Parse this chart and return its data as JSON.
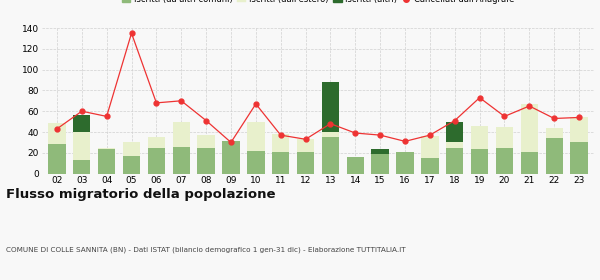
{
  "years": [
    "02",
    "03",
    "04",
    "05",
    "06",
    "07",
    "08",
    "09",
    "10",
    "11",
    "12",
    "13",
    "14",
    "15",
    "16",
    "17",
    "18",
    "19",
    "20",
    "21",
    "22",
    "23"
  ],
  "iscritti_comuni": [
    28,
    13,
    24,
    17,
    25,
    26,
    25,
    31,
    22,
    21,
    21,
    35,
    16,
    19,
    21,
    15,
    25,
    24,
    25,
    21,
    34,
    30
  ],
  "iscritti_estero": [
    21,
    27,
    1,
    13,
    10,
    24,
    12,
    0,
    28,
    17,
    12,
    5,
    0,
    0,
    0,
    21,
    5,
    22,
    20,
    46,
    10,
    24
  ],
  "iscritti_altri": [
    0,
    16,
    0,
    0,
    0,
    0,
    0,
    0,
    0,
    0,
    0,
    48,
    0,
    5,
    0,
    0,
    20,
    0,
    0,
    0,
    0,
    0
  ],
  "cancellati": [
    43,
    60,
    55,
    135,
    68,
    70,
    51,
    30,
    67,
    37,
    33,
    48,
    39,
    37,
    31,
    37,
    51,
    73,
    55,
    65,
    53,
    54
  ],
  "color_comuni": "#8fba7a",
  "color_estero": "#e8f0cc",
  "color_altri": "#2d6b2d",
  "color_cancellati": "#ee3333",
  "background": "#f8f8f8",
  "grid_color": "#d0d0d0",
  "title": "Flusso migratorio della popolazione",
  "subtitle": "COMUNE DI COLLE SANNITA (BN) - Dati ISTAT (bilancio demografico 1 gen-31 dic) - Elaborazione TUTTITALIA.IT",
  "ylim": [
    0,
    140
  ],
  "yticks": [
    0,
    20,
    40,
    60,
    80,
    100,
    120,
    140
  ]
}
